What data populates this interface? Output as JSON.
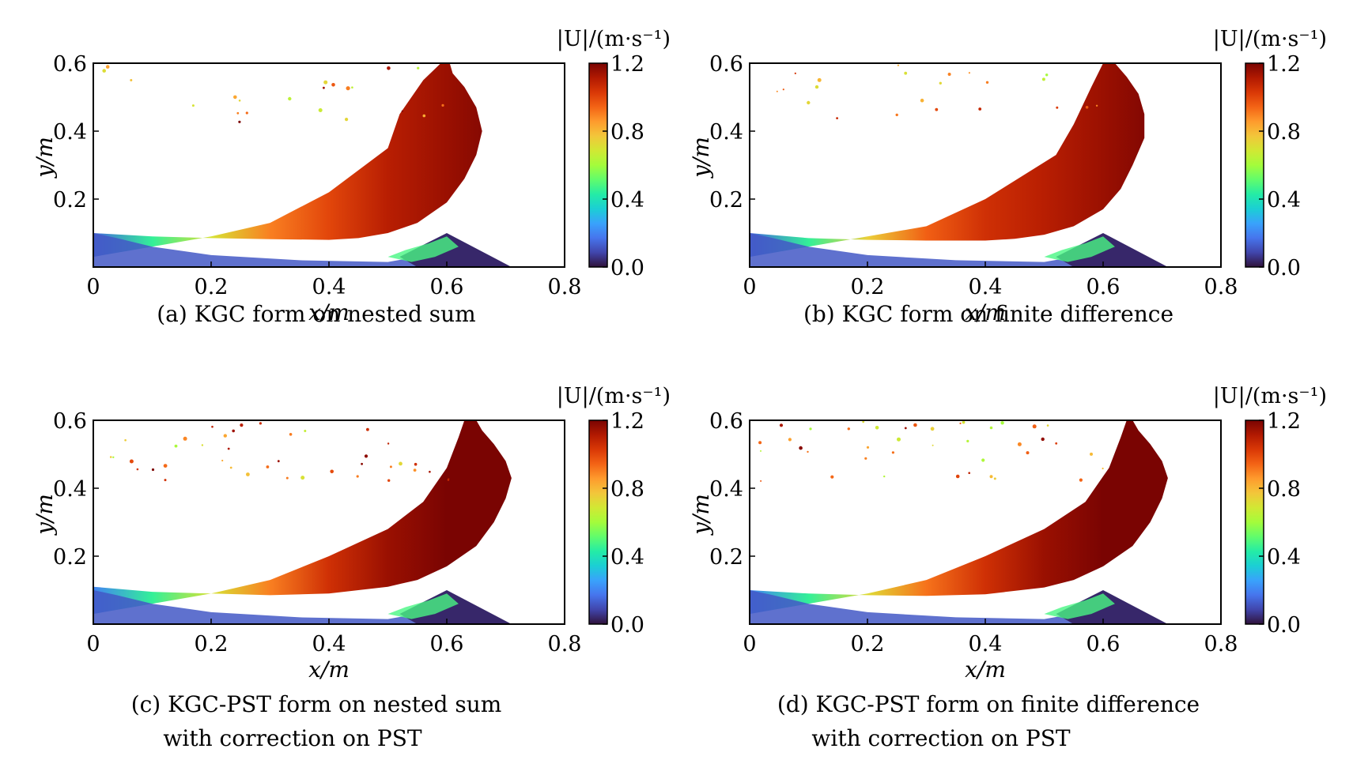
{
  "colorbar_stops": [
    "#30123b",
    "#4145ab",
    "#4675ed",
    "#39a2fc",
    "#1bcfd4",
    "#24eca6",
    "#61fc6c",
    "#a4fc3b",
    "#d1e834",
    "#f3c63a",
    "#fe9b2d",
    "#f36315",
    "#d93806",
    "#b11901",
    "#7a0402"
  ],
  "chart_data": [
    {
      "type": "heatmap",
      "panel_id": "a",
      "caption": [
        "(a) KGC form on nested sum"
      ],
      "xlabel": "x/m",
      "ylabel": "y/m",
      "xlim": [
        0,
        0.8
      ],
      "ylim": [
        0,
        0.6
      ],
      "xticks": [
        0,
        0.2,
        0.4,
        0.6,
        0.8
      ],
      "xtick_labels": [
        "0",
        "0.2",
        "0.4",
        "0.6",
        "0.8"
      ],
      "yticks": [
        0.2,
        0.4,
        0.6
      ],
      "ytick_labels": [
        "0.2",
        "0.4",
        "0.6"
      ],
      "colorbar": {
        "label": "|U|/(m·s⁻¹)",
        "range": [
          0,
          1.2
        ],
        "ticks": [
          0,
          0.4,
          0.8,
          1.2
        ],
        "tick_labels": [
          "0.0",
          "0.4",
          "0.8",
          "1.2"
        ]
      },
      "velocity_profile": {
        "x": [
          0,
          0.1,
          0.2,
          0.3,
          0.4,
          0.5,
          0.6,
          0.7
        ],
        "speed": [
          0.15,
          0.45,
          0.7,
          0.9,
          1.0,
          1.1,
          1.15,
          1.2
        ]
      },
      "jet_top_outline": {
        "x": [
          0.0,
          0.1,
          0.2,
          0.3,
          0.4,
          0.45,
          0.5,
          0.55,
          0.6,
          0.63,
          0.65,
          0.66,
          0.65,
          0.63,
          0.61,
          0.605
        ],
        "y": [
          0.1,
          0.09,
          0.085,
          0.082,
          0.08,
          0.085,
          0.1,
          0.13,
          0.19,
          0.26,
          0.33,
          0.4,
          0.47,
          0.53,
          0.57,
          0.6
        ]
      },
      "jet_bottom_outline": {
        "x": [
          0.59,
          0.56,
          0.52,
          0.5,
          0.4,
          0.3,
          0.2,
          0.1,
          0.0
        ],
        "y": [
          0.6,
          0.55,
          0.45,
          0.35,
          0.22,
          0.13,
          0.09,
          0.06,
          0.03
        ]
      }
    },
    {
      "type": "heatmap",
      "panel_id": "b",
      "caption": [
        "(b) KGC form on finite difference"
      ],
      "xlabel": "x/m",
      "ylabel": "y/m",
      "xlim": [
        0,
        0.8
      ],
      "ylim": [
        0,
        0.6
      ],
      "xticks": [
        0,
        0.2,
        0.4,
        0.6,
        0.8
      ],
      "xtick_labels": [
        "0",
        "0.2",
        "0.4",
        "0.6",
        "0.8"
      ],
      "yticks": [
        0.2,
        0.4,
        0.6
      ],
      "ytick_labels": [
        "0.2",
        "0.4",
        "0.6"
      ],
      "colorbar": {
        "label": "|U|/(m·s⁻¹)",
        "range": [
          0,
          1.2
        ],
        "ticks": [
          0,
          0.4,
          0.8,
          1.2
        ],
        "tick_labels": [
          "0.0",
          "0.4",
          "0.8",
          "1.2"
        ]
      },
      "velocity_profile": {
        "x": [
          0,
          0.1,
          0.2,
          0.3,
          0.4,
          0.5,
          0.6,
          0.7
        ],
        "speed": [
          0.15,
          0.45,
          0.75,
          0.95,
          1.05,
          1.1,
          1.15,
          1.2
        ]
      },
      "jet_top_outline": {
        "x": [
          0.0,
          0.1,
          0.2,
          0.3,
          0.4,
          0.45,
          0.5,
          0.55,
          0.6,
          0.63,
          0.65,
          0.67,
          0.67,
          0.66,
          0.64,
          0.62
        ],
        "y": [
          0.1,
          0.085,
          0.08,
          0.078,
          0.078,
          0.083,
          0.095,
          0.12,
          0.17,
          0.23,
          0.3,
          0.38,
          0.45,
          0.51,
          0.56,
          0.6
        ]
      },
      "jet_bottom_outline": {
        "x": [
          0.6,
          0.58,
          0.55,
          0.52,
          0.4,
          0.3,
          0.2,
          0.1,
          0.0
        ],
        "y": [
          0.6,
          0.53,
          0.42,
          0.33,
          0.2,
          0.12,
          0.09,
          0.06,
          0.03
        ]
      }
    },
    {
      "type": "heatmap",
      "panel_id": "c",
      "caption": [
        "(c) KGC-PST form on nested sum",
        "with correction on PST"
      ],
      "xlabel": "x/m",
      "ylabel": "y/m",
      "xlim": [
        0,
        0.8
      ],
      "ylim": [
        0,
        0.6
      ],
      "xticks": [
        0,
        0.2,
        0.4,
        0.6,
        0.8
      ],
      "xtick_labels": [
        "0",
        "0.2",
        "0.4",
        "0.6",
        "0.8"
      ],
      "yticks": [
        0.2,
        0.4,
        0.6
      ],
      "ytick_labels": [
        "0.2",
        "0.4",
        "0.6"
      ],
      "colorbar": {
        "label": "|U|/(m·s⁻¹)",
        "range": [
          0,
          1.2
        ],
        "ticks": [
          0,
          0.4,
          0.8,
          1.2
        ],
        "tick_labels": [
          "0.0",
          "0.4",
          "0.8",
          "1.2"
        ]
      },
      "velocity_profile": {
        "x": [
          0,
          0.1,
          0.2,
          0.3,
          0.4,
          0.5,
          0.6,
          0.7
        ],
        "speed": [
          0.2,
          0.45,
          0.7,
          0.9,
          1.05,
          1.15,
          1.2,
          1.2
        ]
      },
      "jet_top_outline": {
        "x": [
          0.0,
          0.1,
          0.2,
          0.3,
          0.4,
          0.5,
          0.55,
          0.6,
          0.65,
          0.68,
          0.7,
          0.71,
          0.7,
          0.68,
          0.66,
          0.65
        ],
        "y": [
          0.11,
          0.095,
          0.09,
          0.085,
          0.09,
          0.11,
          0.13,
          0.17,
          0.23,
          0.3,
          0.37,
          0.43,
          0.48,
          0.53,
          0.57,
          0.6
        ]
      },
      "jet_bottom_outline": {
        "x": [
          0.63,
          0.62,
          0.6,
          0.56,
          0.5,
          0.4,
          0.3,
          0.2,
          0.1,
          0.0
        ],
        "y": [
          0.6,
          0.55,
          0.46,
          0.36,
          0.28,
          0.2,
          0.13,
          0.09,
          0.06,
          0.03
        ]
      }
    },
    {
      "type": "heatmap",
      "panel_id": "d",
      "caption": [
        "(d) KGC-PST form on finite difference",
        "with correction on PST"
      ],
      "xlabel": "x/m",
      "ylabel": "y/m",
      "xlim": [
        0,
        0.8
      ],
      "ylim": [
        0,
        0.6
      ],
      "xticks": [
        0,
        0.2,
        0.4,
        0.6,
        0.8
      ],
      "xtick_labels": [
        "0",
        "0.2",
        "0.4",
        "0.6",
        "0.8"
      ],
      "yticks": [
        0.2,
        0.4,
        0.6
      ],
      "ytick_labels": [
        "0.2",
        "0.4",
        "0.6"
      ],
      "colorbar": {
        "label": "|U|/(m·s⁻¹)",
        "range": [
          0,
          1.2
        ],
        "ticks": [
          0,
          0.4,
          0.8,
          1.2
        ],
        "tick_labels": [
          "0.0",
          "0.4",
          "0.8",
          "1.2"
        ]
      },
      "velocity_profile": {
        "x": [
          0,
          0.1,
          0.2,
          0.3,
          0.4,
          0.5,
          0.6,
          0.7
        ],
        "speed": [
          0.2,
          0.45,
          0.72,
          0.92,
          1.05,
          1.15,
          1.2,
          1.2
        ]
      },
      "jet_top_outline": {
        "x": [
          0.0,
          0.1,
          0.2,
          0.3,
          0.4,
          0.5,
          0.55,
          0.6,
          0.65,
          0.68,
          0.7,
          0.71,
          0.7,
          0.68,
          0.66,
          0.65
        ],
        "y": [
          0.1,
          0.09,
          0.085,
          0.083,
          0.088,
          0.108,
          0.13,
          0.17,
          0.23,
          0.3,
          0.37,
          0.43,
          0.48,
          0.53,
          0.57,
          0.6
        ]
      },
      "jet_bottom_outline": {
        "x": [
          0.64,
          0.63,
          0.61,
          0.57,
          0.5,
          0.4,
          0.3,
          0.2,
          0.1,
          0.0
        ],
        "y": [
          0.6,
          0.55,
          0.46,
          0.36,
          0.28,
          0.2,
          0.13,
          0.09,
          0.06,
          0.03
        ]
      }
    }
  ]
}
